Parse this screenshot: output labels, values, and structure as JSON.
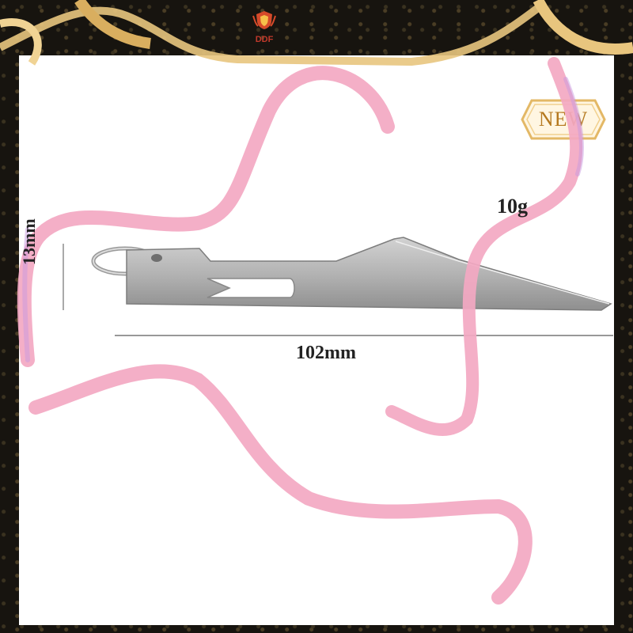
{
  "brand": {
    "name": "DDF"
  },
  "badge": {
    "text": "NEW"
  },
  "dimensions": {
    "weight": "10g",
    "height": "13mm",
    "length": "102mm"
  },
  "colors": {
    "ribbon_pink": "#f2a6c0",
    "ribbon_gold": "#e6c27a",
    "tool_steel": "#b8b8b8",
    "frame": "#17140f"
  }
}
